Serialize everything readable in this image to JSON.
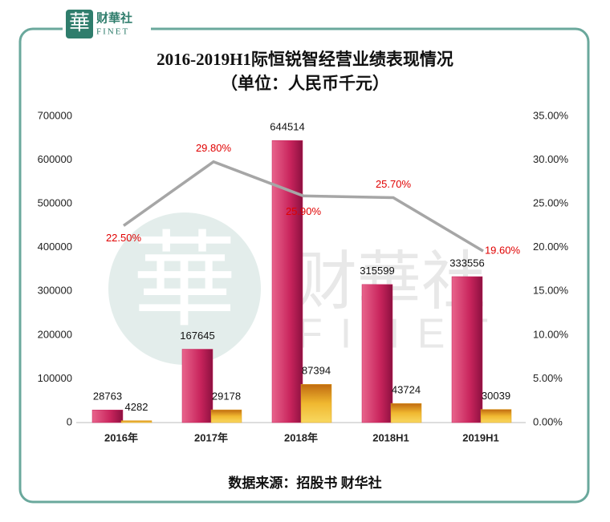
{
  "logo": {
    "mark": "華",
    "name": "财華社",
    "sub": "FINET"
  },
  "chart_data": {
    "type": "bar",
    "title": "2016-2019H1际恒锐智经营业绩表现情况",
    "subtitle": "（单位：人民币千元）",
    "source": "数据来源：招股书 财华社",
    "categories": [
      "2016年",
      "2017年",
      "2018年",
      "2018H1",
      "2019H1"
    ],
    "series": [
      {
        "color": "#c8245c",
        "values": [
          28763,
          167645,
          644514,
          315599,
          333556
        ]
      },
      {
        "color": "#e0a020",
        "values": [
          4282,
          29178,
          87394,
          43724,
          30039
        ]
      },
      {
        "type": "line",
        "axis": "y2",
        "color": "#a6a6a6",
        "values": [
          22.5,
          29.8,
          25.9,
          25.7,
          19.6
        ],
        "value_labels": [
          "22.50%",
          "29.80%",
          "25.90%",
          "25.70%",
          "19.60%"
        ]
      }
    ],
    "ylim": [
      0,
      700000
    ],
    "yticks": [
      0,
      100000,
      200000,
      300000,
      400000,
      500000,
      600000,
      700000
    ],
    "y2lim": [
      0,
      35
    ],
    "y2ticks": [
      {
        "value": 0,
        "label": "0.00%"
      },
      {
        "value": 5,
        "label": "5.00%"
      },
      {
        "value": 10,
        "label": "10.00%"
      },
      {
        "value": 15,
        "label": "15.00%"
      },
      {
        "value": 20,
        "label": "20.00%"
      },
      {
        "value": 25,
        "label": "25.00%"
      },
      {
        "value": 30,
        "label": "30.00%"
      },
      {
        "value": 35,
        "label": "35.00%"
      }
    ]
  }
}
